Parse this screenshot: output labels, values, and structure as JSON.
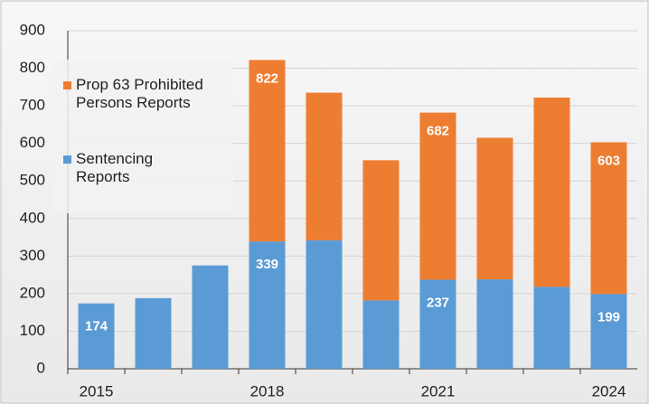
{
  "chart_data": {
    "type": "stacked-bar",
    "categories": [
      "2015",
      null,
      null,
      "2018",
      null,
      null,
      "2021",
      null,
      null,
      "2024"
    ],
    "series": [
      {
        "name": "Sentencing Reports",
        "color": "#5b9bd5",
        "values": [
          174,
          188,
          275,
          339,
          342,
          182,
          237,
          238,
          218,
          199
        ],
        "value_labels": [
          "174",
          null,
          null,
          "339",
          null,
          null,
          "237",
          null,
          null,
          "199"
        ]
      },
      {
        "name": "Prop 63 Prohibited Persons Reports",
        "color": "#ed7d31",
        "values": [
          null,
          null,
          null,
          483,
          393,
          373,
          445,
          377,
          504,
          404
        ]
      }
    ],
    "totals": [
      null,
      null,
      null,
      822,
      null,
      null,
      682,
      null,
      null,
      603
    ],
    "ylim": [
      0,
      900
    ],
    "yticks": [
      0,
      100,
      200,
      300,
      400,
      500,
      600,
      700,
      800,
      900
    ],
    "grid": true
  }
}
